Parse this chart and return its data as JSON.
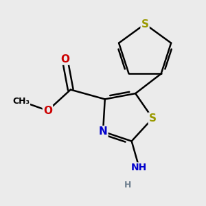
{
  "background_color": "#ebebeb",
  "atom_colors": {
    "S": "#999900",
    "N": "#0000cc",
    "O": "#cc0000",
    "C": "#000000",
    "H": "#708090"
  },
  "bond_color": "#000000",
  "bond_width": 1.8,
  "dbo": 0.07,
  "figsize": [
    3.0,
    3.0
  ],
  "dpi": 100
}
